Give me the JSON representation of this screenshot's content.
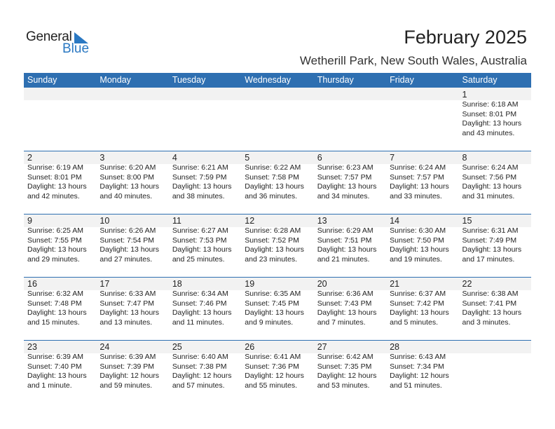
{
  "logo": {
    "text_general": "General",
    "text_blue": "Blue"
  },
  "header": {
    "title": "February 2025",
    "location": "Wetherill Park, New South Wales, Australia"
  },
  "colors": {
    "header_bg": "#2e6fb1",
    "date_strip": "#f2f2f2",
    "logo_blue": "#2a78c2"
  },
  "days": [
    "Sunday",
    "Monday",
    "Tuesday",
    "Wednesday",
    "Thursday",
    "Friday",
    "Saturday"
  ],
  "weeks": [
    [
      null,
      null,
      null,
      null,
      null,
      null,
      {
        "day": "1",
        "sunrise": "Sunrise: 6:18 AM",
        "sunset": "Sunset: 8:01 PM",
        "daylight1": "Daylight: 13 hours",
        "daylight2": "and 43 minutes."
      }
    ],
    [
      {
        "day": "2",
        "sunrise": "Sunrise: 6:19 AM",
        "sunset": "Sunset: 8:01 PM",
        "daylight1": "Daylight: 13 hours",
        "daylight2": "and 42 minutes."
      },
      {
        "day": "3",
        "sunrise": "Sunrise: 6:20 AM",
        "sunset": "Sunset: 8:00 PM",
        "daylight1": "Daylight: 13 hours",
        "daylight2": "and 40 minutes."
      },
      {
        "day": "4",
        "sunrise": "Sunrise: 6:21 AM",
        "sunset": "Sunset: 7:59 PM",
        "daylight1": "Daylight: 13 hours",
        "daylight2": "and 38 minutes."
      },
      {
        "day": "5",
        "sunrise": "Sunrise: 6:22 AM",
        "sunset": "Sunset: 7:58 PM",
        "daylight1": "Daylight: 13 hours",
        "daylight2": "and 36 minutes."
      },
      {
        "day": "6",
        "sunrise": "Sunrise: 6:23 AM",
        "sunset": "Sunset: 7:57 PM",
        "daylight1": "Daylight: 13 hours",
        "daylight2": "and 34 minutes."
      },
      {
        "day": "7",
        "sunrise": "Sunrise: 6:24 AM",
        "sunset": "Sunset: 7:57 PM",
        "daylight1": "Daylight: 13 hours",
        "daylight2": "and 33 minutes."
      },
      {
        "day": "8",
        "sunrise": "Sunrise: 6:24 AM",
        "sunset": "Sunset: 7:56 PM",
        "daylight1": "Daylight: 13 hours",
        "daylight2": "and 31 minutes."
      }
    ],
    [
      {
        "day": "9",
        "sunrise": "Sunrise: 6:25 AM",
        "sunset": "Sunset: 7:55 PM",
        "daylight1": "Daylight: 13 hours",
        "daylight2": "and 29 minutes."
      },
      {
        "day": "10",
        "sunrise": "Sunrise: 6:26 AM",
        "sunset": "Sunset: 7:54 PM",
        "daylight1": "Daylight: 13 hours",
        "daylight2": "and 27 minutes."
      },
      {
        "day": "11",
        "sunrise": "Sunrise: 6:27 AM",
        "sunset": "Sunset: 7:53 PM",
        "daylight1": "Daylight: 13 hours",
        "daylight2": "and 25 minutes."
      },
      {
        "day": "12",
        "sunrise": "Sunrise: 6:28 AM",
        "sunset": "Sunset: 7:52 PM",
        "daylight1": "Daylight: 13 hours",
        "daylight2": "and 23 minutes."
      },
      {
        "day": "13",
        "sunrise": "Sunrise: 6:29 AM",
        "sunset": "Sunset: 7:51 PM",
        "daylight1": "Daylight: 13 hours",
        "daylight2": "and 21 minutes."
      },
      {
        "day": "14",
        "sunrise": "Sunrise: 6:30 AM",
        "sunset": "Sunset: 7:50 PM",
        "daylight1": "Daylight: 13 hours",
        "daylight2": "and 19 minutes."
      },
      {
        "day": "15",
        "sunrise": "Sunrise: 6:31 AM",
        "sunset": "Sunset: 7:49 PM",
        "daylight1": "Daylight: 13 hours",
        "daylight2": "and 17 minutes."
      }
    ],
    [
      {
        "day": "16",
        "sunrise": "Sunrise: 6:32 AM",
        "sunset": "Sunset: 7:48 PM",
        "daylight1": "Daylight: 13 hours",
        "daylight2": "and 15 minutes."
      },
      {
        "day": "17",
        "sunrise": "Sunrise: 6:33 AM",
        "sunset": "Sunset: 7:47 PM",
        "daylight1": "Daylight: 13 hours",
        "daylight2": "and 13 minutes."
      },
      {
        "day": "18",
        "sunrise": "Sunrise: 6:34 AM",
        "sunset": "Sunset: 7:46 PM",
        "daylight1": "Daylight: 13 hours",
        "daylight2": "and 11 minutes."
      },
      {
        "day": "19",
        "sunrise": "Sunrise: 6:35 AM",
        "sunset": "Sunset: 7:45 PM",
        "daylight1": "Daylight: 13 hours",
        "daylight2": "and 9 minutes."
      },
      {
        "day": "20",
        "sunrise": "Sunrise: 6:36 AM",
        "sunset": "Sunset: 7:43 PM",
        "daylight1": "Daylight: 13 hours",
        "daylight2": "and 7 minutes."
      },
      {
        "day": "21",
        "sunrise": "Sunrise: 6:37 AM",
        "sunset": "Sunset: 7:42 PM",
        "daylight1": "Daylight: 13 hours",
        "daylight2": "and 5 minutes."
      },
      {
        "day": "22",
        "sunrise": "Sunrise: 6:38 AM",
        "sunset": "Sunset: 7:41 PM",
        "daylight1": "Daylight: 13 hours",
        "daylight2": "and 3 minutes."
      }
    ],
    [
      {
        "day": "23",
        "sunrise": "Sunrise: 6:39 AM",
        "sunset": "Sunset: 7:40 PM",
        "daylight1": "Daylight: 13 hours",
        "daylight2": "and 1 minute."
      },
      {
        "day": "24",
        "sunrise": "Sunrise: 6:39 AM",
        "sunset": "Sunset: 7:39 PM",
        "daylight1": "Daylight: 12 hours",
        "daylight2": "and 59 minutes."
      },
      {
        "day": "25",
        "sunrise": "Sunrise: 6:40 AM",
        "sunset": "Sunset: 7:38 PM",
        "daylight1": "Daylight: 12 hours",
        "daylight2": "and 57 minutes."
      },
      {
        "day": "26",
        "sunrise": "Sunrise: 6:41 AM",
        "sunset": "Sunset: 7:36 PM",
        "daylight1": "Daylight: 12 hours",
        "daylight2": "and 55 minutes."
      },
      {
        "day": "27",
        "sunrise": "Sunrise: 6:42 AM",
        "sunset": "Sunset: 7:35 PM",
        "daylight1": "Daylight: 12 hours",
        "daylight2": "and 53 minutes."
      },
      {
        "day": "28",
        "sunrise": "Sunrise: 6:43 AM",
        "sunset": "Sunset: 7:34 PM",
        "daylight1": "Daylight: 12 hours",
        "daylight2": "and 51 minutes."
      },
      null
    ]
  ]
}
